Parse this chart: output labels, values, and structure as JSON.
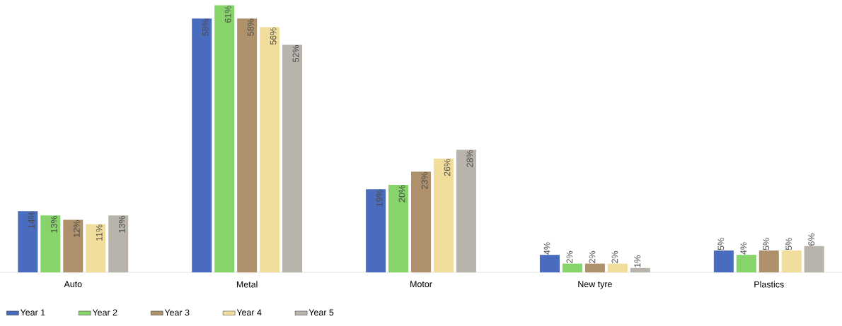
{
  "chart_data": {
    "type": "bar",
    "categories": [
      "Auto",
      "Metal",
      "Motor",
      "New tyre",
      "Plastics"
    ],
    "series": [
      {
        "name": "Year 1",
        "color": "#4a6cbf",
        "values": [
          14,
          58,
          19,
          4,
          5
        ],
        "value_labels": [
          "14%",
          "58%",
          "19%",
          "4%",
          "5%"
        ]
      },
      {
        "name": "Year 2",
        "color": "#86d46a",
        "values": [
          13,
          61,
          20,
          2,
          4
        ],
        "value_labels": [
          "13%",
          "61%",
          "20%",
          "2%",
          "4%"
        ]
      },
      {
        "name": "Year 3",
        "color": "#ae916b",
        "values": [
          12,
          58,
          23,
          2,
          5
        ],
        "value_labels": [
          "12%",
          "58%",
          "23%",
          "2%",
          "5%"
        ]
      },
      {
        "name": "Year 4",
        "color": "#f1de9c",
        "values": [
          11,
          56,
          26,
          2,
          5
        ],
        "value_labels": [
          "11%",
          "56%",
          "26%",
          "2%",
          "5%"
        ]
      },
      {
        "name": "Year 5",
        "color": "#b8b4ac",
        "values": [
          13,
          52,
          28,
          1,
          6
        ],
        "value_labels": [
          "13%",
          "52%",
          "28%",
          "1%",
          "6%"
        ]
      }
    ],
    "legend": "bottom left"
  }
}
